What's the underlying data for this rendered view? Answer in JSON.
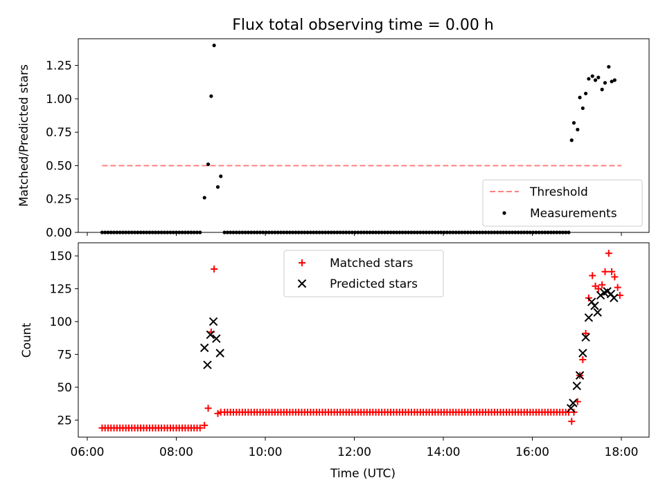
{
  "chart_data": [
    {
      "type": "scatter",
      "title": "Flux total observing time = 0.00 h",
      "xlabel": "",
      "ylabel": "Matched/Predicted stars",
      "ylim": [
        0,
        1.45
      ],
      "yticks": [
        "0.00",
        "0.25",
        "0.50",
        "0.75",
        "1.00",
        "1.25"
      ],
      "legend_placement": "lower-right",
      "series": [
        {
          "name": "Threshold",
          "style": "dashed-line",
          "color": "#ff7f7f",
          "x": [
            "06:20",
            "18:00"
          ],
          "y": [
            0.5,
            0.5
          ]
        },
        {
          "name": "Measurements",
          "style": "dot",
          "color": "#000000",
          "zeros_from": "06:20",
          "zeros_to": "08:35",
          "zeros2_from": "09:05",
          "zeros2_to": "16:50",
          "x": [
            "08:38",
            "08:43",
            "08:47",
            "08:51",
            "08:56",
            "09:00",
            "16:53",
            "16:56",
            "17:01",
            "17:04",
            "17:08",
            "17:12",
            "17:16",
            "17:21",
            "17:25",
            "17:29",
            "17:34",
            "17:38",
            "17:43",
            "17:47",
            "17:51"
          ],
          "y": [
            0.26,
            0.51,
            1.02,
            1.4,
            0.34,
            0.42,
            0.69,
            0.82,
            0.77,
            1.01,
            0.93,
            1.04,
            1.15,
            1.17,
            1.14,
            1.16,
            1.07,
            1.12,
            1.24,
            1.13,
            1.14
          ]
        }
      ]
    },
    {
      "type": "scatter",
      "title": "",
      "xlabel": "Time (UTC)",
      "ylabel": "Count",
      "ylim": [
        12,
        160
      ],
      "yticks": [
        "25",
        "50",
        "75",
        "100",
        "125",
        "150"
      ],
      "xticks": [
        "06:00",
        "08:00",
        "10:00",
        "12:00",
        "14:00",
        "16:00",
        "18:00"
      ],
      "legend_placement": "upper-center",
      "series": [
        {
          "name": "Matched stars",
          "marker": "plus",
          "color": "#ff0000",
          "baseline_low": {
            "from": "06:20",
            "to": "08:35",
            "value": 19
          },
          "baseline_high": {
            "from": "09:05",
            "to": "16:50",
            "value": 31
          },
          "x": [
            "08:38",
            "08:43",
            "08:47",
            "08:51",
            "08:56",
            "09:00",
            "16:53",
            "16:56",
            "17:01",
            "17:04",
            "17:08",
            "17:12",
            "17:16",
            "17:21",
            "17:25",
            "17:29",
            "17:34",
            "17:38",
            "17:43",
            "17:47",
            "17:51",
            "17:55",
            "17:58"
          ],
          "y": [
            21,
            34,
            92,
            140,
            30,
            31,
            24,
            31,
            39,
            59,
            71,
            91,
            118,
            135,
            127,
            125,
            128,
            138,
            152,
            138,
            134,
            126,
            120
          ]
        },
        {
          "name": "Predicted stars",
          "marker": "x",
          "color": "#000000",
          "x": [
            "08:38",
            "08:42",
            "08:46",
            "08:50",
            "08:54",
            "08:59",
            "16:52",
            "16:55",
            "17:00",
            "17:04",
            "17:08",
            "17:12",
            "17:16",
            "17:20",
            "17:24",
            "17:28",
            "17:32",
            "17:37",
            "17:41",
            "17:46",
            "17:50"
          ],
          "y": [
            80,
            67,
            90,
            100,
            87,
            76,
            34,
            38,
            51,
            59,
            76,
            88,
            103,
            115,
            112,
            107,
            120,
            122,
            123,
            121,
            118
          ]
        }
      ]
    }
  ]
}
